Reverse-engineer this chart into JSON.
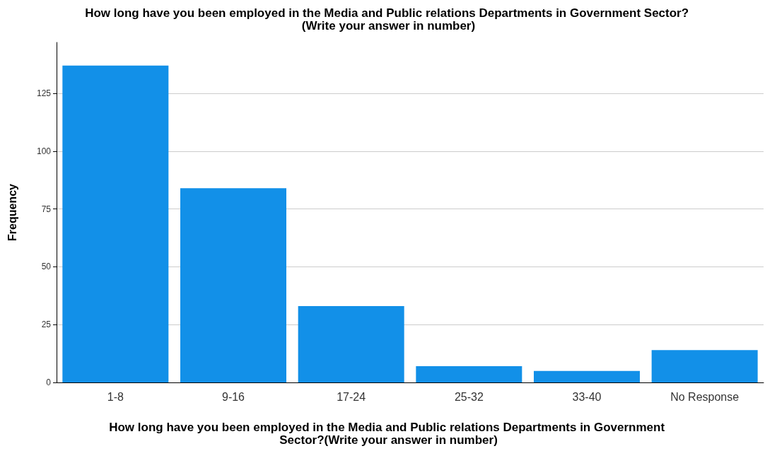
{
  "chart_data": {
    "type": "bar",
    "title": "How long have you been employed in the Media and Public relations Departments in Government Sector? (Write your answer in number)",
    "xlabel": "How long have you been employed in the Media and Public relations Departments in Government Sector?(Write your answer in number)",
    "ylabel": "Frequency",
    "categories": [
      "1-8",
      "9-16",
      "17-24",
      "25-32",
      "33-40",
      "No Response"
    ],
    "values": [
      137,
      84,
      33,
      7,
      5,
      14
    ],
    "color": "#1290e8",
    "ylim": [
      0,
      147
    ],
    "yticks": [
      0,
      25,
      50,
      75,
      100,
      125
    ],
    "grid": "y"
  }
}
